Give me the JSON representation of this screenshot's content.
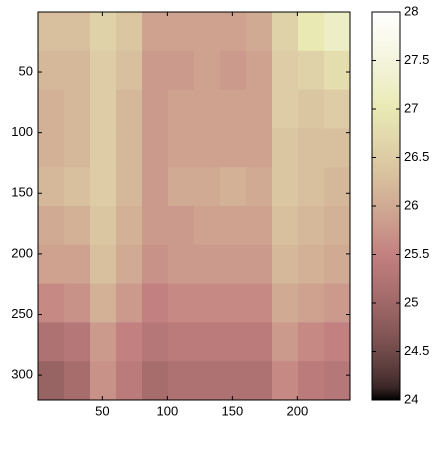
{
  "chart_data": {
    "type": "heatmap",
    "colormap": "pink",
    "xlim": [
      0.5,
      240.5
    ],
    "ylim": [
      0.5,
      320.5
    ],
    "y_reversed": true,
    "xticks": [
      50,
      100,
      150,
      200
    ],
    "yticks": [
      50,
      100,
      150,
      200,
      250,
      300
    ],
    "clim": [
      24,
      28
    ],
    "cticks": [
      24,
      24.5,
      25,
      25.5,
      26,
      26.5,
      27,
      27.5,
      28
    ],
    "z": [
      [
        26.3,
        26.3,
        26.6,
        26.4,
        25.9,
        25.9,
        25.9,
        25.9,
        26.0,
        26.6,
        27.0,
        27.2
      ],
      [
        26.2,
        26.2,
        26.5,
        26.3,
        25.8,
        25.8,
        25.9,
        25.8,
        25.9,
        26.5,
        26.6,
        26.8
      ],
      [
        26.1,
        26.2,
        26.5,
        26.2,
        25.8,
        25.9,
        25.9,
        25.9,
        25.9,
        26.5,
        26.4,
        26.5
      ],
      [
        26.1,
        26.2,
        26.5,
        26.2,
        25.8,
        25.9,
        25.9,
        25.9,
        25.9,
        26.4,
        26.3,
        26.3
      ],
      [
        26.2,
        26.3,
        26.5,
        26.2,
        25.8,
        26.0,
        26.0,
        26.1,
        26.0,
        26.4,
        26.3,
        26.2
      ],
      [
        26.0,
        26.1,
        26.4,
        26.1,
        25.8,
        25.8,
        25.9,
        25.9,
        25.9,
        26.3,
        26.2,
        26.1
      ],
      [
        25.9,
        25.9,
        26.3,
        26.0,
        25.7,
        25.8,
        25.8,
        25.8,
        25.8,
        26.2,
        26.1,
        26.0
      ],
      [
        25.6,
        25.7,
        26.1,
        25.8,
        25.5,
        25.6,
        25.6,
        25.6,
        25.6,
        26.0,
        25.9,
        25.8
      ],
      [
        25.2,
        25.3,
        25.8,
        25.5,
        25.3,
        25.4,
        25.4,
        25.4,
        25.4,
        25.8,
        25.6,
        25.5
      ],
      [
        24.9,
        25.1,
        25.7,
        25.4,
        25.1,
        25.2,
        25.2,
        25.2,
        25.2,
        25.6,
        25.4,
        25.3
      ]
    ]
  }
}
